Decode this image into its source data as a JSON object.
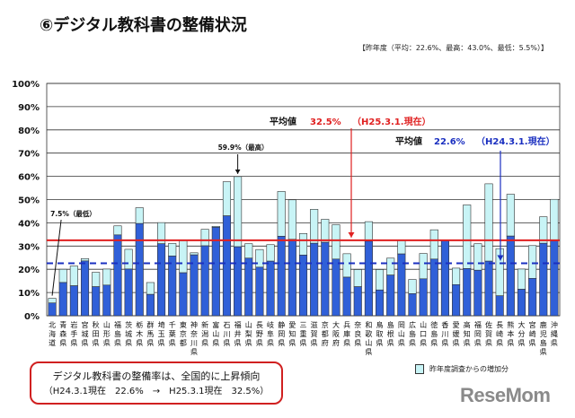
{
  "title": "⑥デジタル教科書の整備状況",
  "subnote": "【昨年度（平均：22.6%、最高：43.0%、最低：5.5%）】",
  "summary_box": {
    "line1": "デジタル教科書の整備率は、全国的に上昇傾向",
    "line2": "（H24.3.1現在　22.6%　→　H25.3.1現在　32.5%）"
  },
  "logo": "ReseMom",
  "chart_data": {
    "type": "bar",
    "stacked": true,
    "ylim": [
      0,
      100
    ],
    "yticks": [
      "0%",
      "10%",
      "20%",
      "30%",
      "40%",
      "50%",
      "60%",
      "70%",
      "80%",
      "90%",
      "100%"
    ],
    "grid": true,
    "colors": {
      "base": "#3060d8",
      "increase": "#c8f4f6",
      "avg_current": "#e02020",
      "avg_previous": "#1a2fc0"
    },
    "categories": [
      "北海道",
      "青森県",
      "岩手県",
      "宮城県",
      "秋田県",
      "山形県",
      "福島県",
      "茨城県",
      "栃木県",
      "群馬県",
      "埼玉県",
      "千葉県",
      "東京都",
      "神奈川県",
      "新潟県",
      "富山県",
      "石川県",
      "福井県",
      "山梨県",
      "長野県",
      "岐阜県",
      "静岡県",
      "愛知県",
      "三重県",
      "滋賀県",
      "京都府",
      "大阪府",
      "兵庫県",
      "奈良県",
      "和歌山県",
      "鳥取県",
      "島根県",
      "岡山県",
      "広島県",
      "山口県",
      "徳島県",
      "香川県",
      "愛媛県",
      "高知県",
      "福岡県",
      "佐賀県",
      "長崎県",
      "熊本県",
      "大分県",
      "宮崎県",
      "鹿児島県",
      "沖縄県"
    ],
    "series": [
      {
        "name": "",
        "role": "previous-year",
        "values": [
          5.5,
          14.3,
          12.9,
          23.6,
          12.5,
          13.2,
          34.8,
          20.1,
          39.7,
          9.2,
          31.0,
          25.7,
          18.5,
          26.2,
          30.1,
          38.1,
          43.0,
          29.7,
          24.8,
          20.9,
          23.5,
          34.2,
          32.9,
          26.1,
          31.2,
          31.6,
          24.4,
          16.6,
          12.5,
          32.1,
          11.1,
          17.5,
          26.6,
          9.5,
          15.9,
          24.4,
          32.3,
          13.4,
          20.3,
          19.6,
          23.5,
          8.6,
          34.3,
          11.4,
          16.1,
          31.2,
          32.3
        ]
      },
      {
        "name": "昨年度調査からの増加分",
        "role": "increase",
        "values": [
          2.0,
          5.7,
          8.5,
          1.0,
          6.2,
          6.9,
          3.9,
          8.5,
          6.8,
          5.1,
          9.1,
          5.4,
          14.1,
          0.9,
          7.1,
          0.4,
          14.7,
          30.2,
          6.2,
          7.6,
          7.1,
          19.3,
          17.0,
          9.3,
          14.6,
          9.9,
          14.8,
          10.1,
          7.4,
          8.4,
          8.8,
          7.3,
          6.0,
          6.1,
          10.9,
          12.6,
          0.3,
          7.1,
          27.4,
          11.4,
          33.3,
          20.3,
          18.0,
          8.7,
          14.1,
          11.4,
          17.8
        ]
      }
    ],
    "reference_lines": [
      {
        "value": 32.5,
        "label": "平均値",
        "value_label": "32.5%",
        "date_label": "（H25.3.1.現在）",
        "style": "solid"
      },
      {
        "value": 22.6,
        "label": "平均値",
        "value_label": "22.6%",
        "date_label": "（H24.3.1.現在）",
        "style": "dashed"
      }
    ],
    "annotations": [
      {
        "category": "福井県",
        "text": "59.9%（最高）"
      },
      {
        "category": "北海道",
        "text": "7.5%（最低）"
      }
    ]
  }
}
